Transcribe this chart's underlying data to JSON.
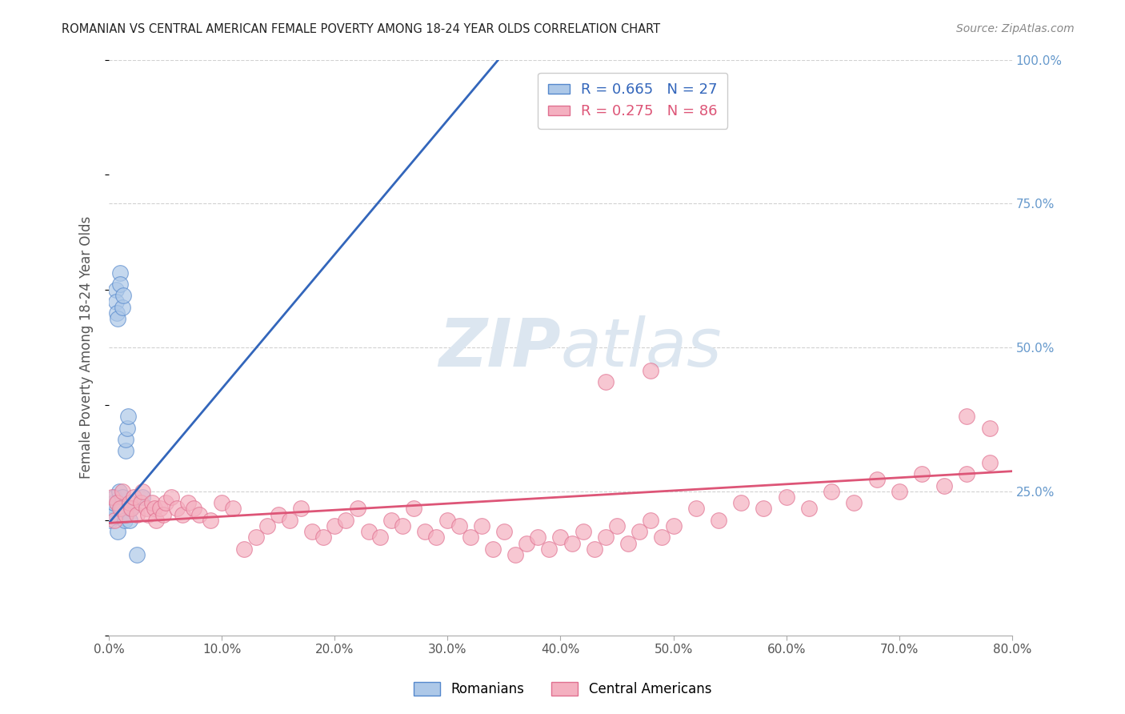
{
  "title": "ROMANIAN VS CENTRAL AMERICAN FEMALE POVERTY AMONG 18-24 YEAR OLDS CORRELATION CHART",
  "source": "Source: ZipAtlas.com",
  "ylabel_label": "Female Poverty Among 18-24 Year Olds",
  "legend_entries": [
    "Romanians",
    "Central Americans"
  ],
  "r_romanian": 0.665,
  "n_romanian": 27,
  "r_central": 0.275,
  "n_central": 86,
  "blue_fill": "#adc8e8",
  "blue_edge": "#5588cc",
  "pink_fill": "#f4b0c0",
  "pink_edge": "#e07090",
  "blue_line_color": "#3366bb",
  "pink_line_color": "#dd5577",
  "watermark_color": "#dce6f0",
  "background_color": "#ffffff",
  "grid_color": "#cccccc",
  "right_tick_color": "#6699cc",
  "xlim": [
    0.0,
    0.8
  ],
  "ylim": [
    0.0,
    1.0
  ],
  "romanian_x": [
    0.001,
    0.003,
    0.003,
    0.004,
    0.005,
    0.006,
    0.006,
    0.007,
    0.008,
    0.008,
    0.009,
    0.01,
    0.01,
    0.011,
    0.012,
    0.012,
    0.013,
    0.014,
    0.015,
    0.015,
    0.016,
    0.017,
    0.018,
    0.019,
    0.02,
    0.025,
    0.03
  ],
  "romanian_y": [
    0.2,
    0.22,
    0.21,
    0.23,
    0.24,
    0.6,
    0.58,
    0.56,
    0.55,
    0.18,
    0.25,
    0.63,
    0.61,
    0.22,
    0.24,
    0.57,
    0.59,
    0.2,
    0.32,
    0.34,
    0.36,
    0.38,
    0.2,
    0.22,
    0.22,
    0.14,
    0.24
  ],
  "central_x": [
    0.003,
    0.005,
    0.007,
    0.01,
    0.012,
    0.015,
    0.018,
    0.02,
    0.022,
    0.025,
    0.028,
    0.03,
    0.033,
    0.035,
    0.038,
    0.04,
    0.042,
    0.045,
    0.048,
    0.05,
    0.055,
    0.06,
    0.065,
    0.07,
    0.075,
    0.08,
    0.09,
    0.1,
    0.11,
    0.12,
    0.13,
    0.14,
    0.15,
    0.16,
    0.17,
    0.18,
    0.19,
    0.2,
    0.21,
    0.22,
    0.23,
    0.24,
    0.25,
    0.26,
    0.27,
    0.28,
    0.29,
    0.3,
    0.31,
    0.32,
    0.33,
    0.34,
    0.35,
    0.36,
    0.37,
    0.38,
    0.39,
    0.4,
    0.41,
    0.42,
    0.43,
    0.44,
    0.45,
    0.46,
    0.47,
    0.48,
    0.49,
    0.5,
    0.52,
    0.54,
    0.56,
    0.58,
    0.6,
    0.62,
    0.64,
    0.66,
    0.68,
    0.7,
    0.72,
    0.74,
    0.76,
    0.78,
    0.76,
    0.78,
    0.44,
    0.48
  ],
  "central_y": [
    0.24,
    0.2,
    0.23,
    0.22,
    0.25,
    0.21,
    0.23,
    0.22,
    0.24,
    0.21,
    0.23,
    0.25,
    0.22,
    0.21,
    0.23,
    0.22,
    0.2,
    0.22,
    0.21,
    0.23,
    0.24,
    0.22,
    0.21,
    0.23,
    0.22,
    0.21,
    0.2,
    0.23,
    0.22,
    0.15,
    0.17,
    0.19,
    0.21,
    0.2,
    0.22,
    0.18,
    0.17,
    0.19,
    0.2,
    0.22,
    0.18,
    0.17,
    0.2,
    0.19,
    0.22,
    0.18,
    0.17,
    0.2,
    0.19,
    0.17,
    0.19,
    0.15,
    0.18,
    0.14,
    0.16,
    0.17,
    0.15,
    0.17,
    0.16,
    0.18,
    0.15,
    0.17,
    0.19,
    0.16,
    0.18,
    0.2,
    0.17,
    0.19,
    0.22,
    0.2,
    0.23,
    0.22,
    0.24,
    0.22,
    0.25,
    0.23,
    0.27,
    0.25,
    0.28,
    0.26,
    0.28,
    0.3,
    0.38,
    0.36,
    0.44,
    0.46
  ],
  "blue_line_x0": 0.0,
  "blue_line_y0": 0.195,
  "blue_line_x1": 0.345,
  "blue_line_y1": 1.0,
  "pink_line_x0": 0.0,
  "pink_line_y0": 0.195,
  "pink_line_x1": 0.8,
  "pink_line_y1": 0.285
}
